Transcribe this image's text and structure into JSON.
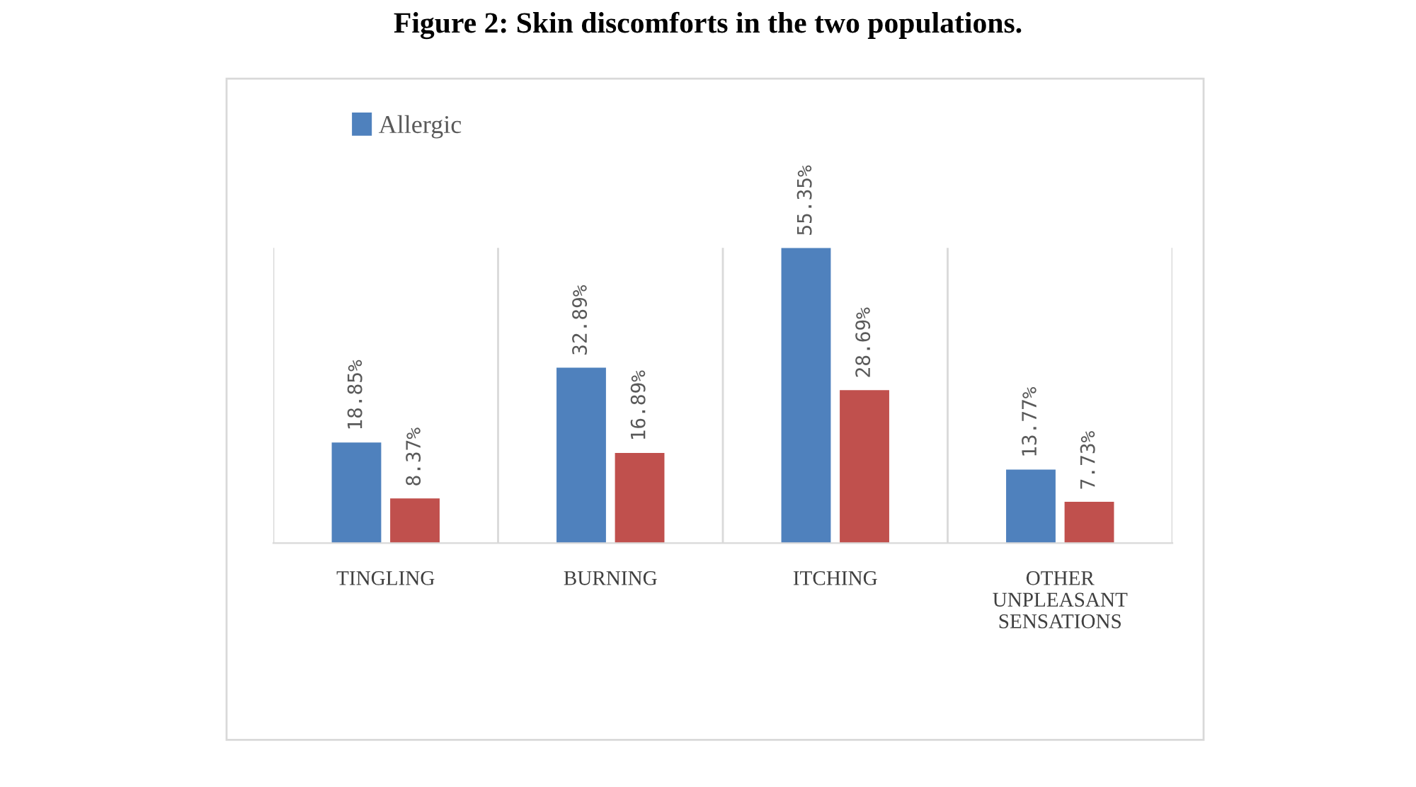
{
  "chart_data": {
    "type": "bar",
    "title": "Figure 2: Skin discomforts in the two populations.",
    "categories": [
      "TINGLING",
      "BURNING",
      "ITCHING",
      "OTHER\nUNPLEASANT\nSENSATIONS"
    ],
    "series": [
      {
        "name": "Allergic",
        "color": "#4f81bd",
        "values": [
          18.85,
          32.89,
          55.35,
          13.77
        ],
        "value_labels": [
          "18.85%",
          "32.89%",
          "55.35%",
          "13.77%"
        ]
      },
      {
        "color": "#c0504d",
        "values": [
          8.37,
          16.89,
          28.69,
          7.73
        ],
        "value_labels": [
          "8.37%",
          "16.89%",
          "28.69%",
          "7.73%"
        ]
      }
    ],
    "grid": "x",
    "legend": "top left"
  }
}
